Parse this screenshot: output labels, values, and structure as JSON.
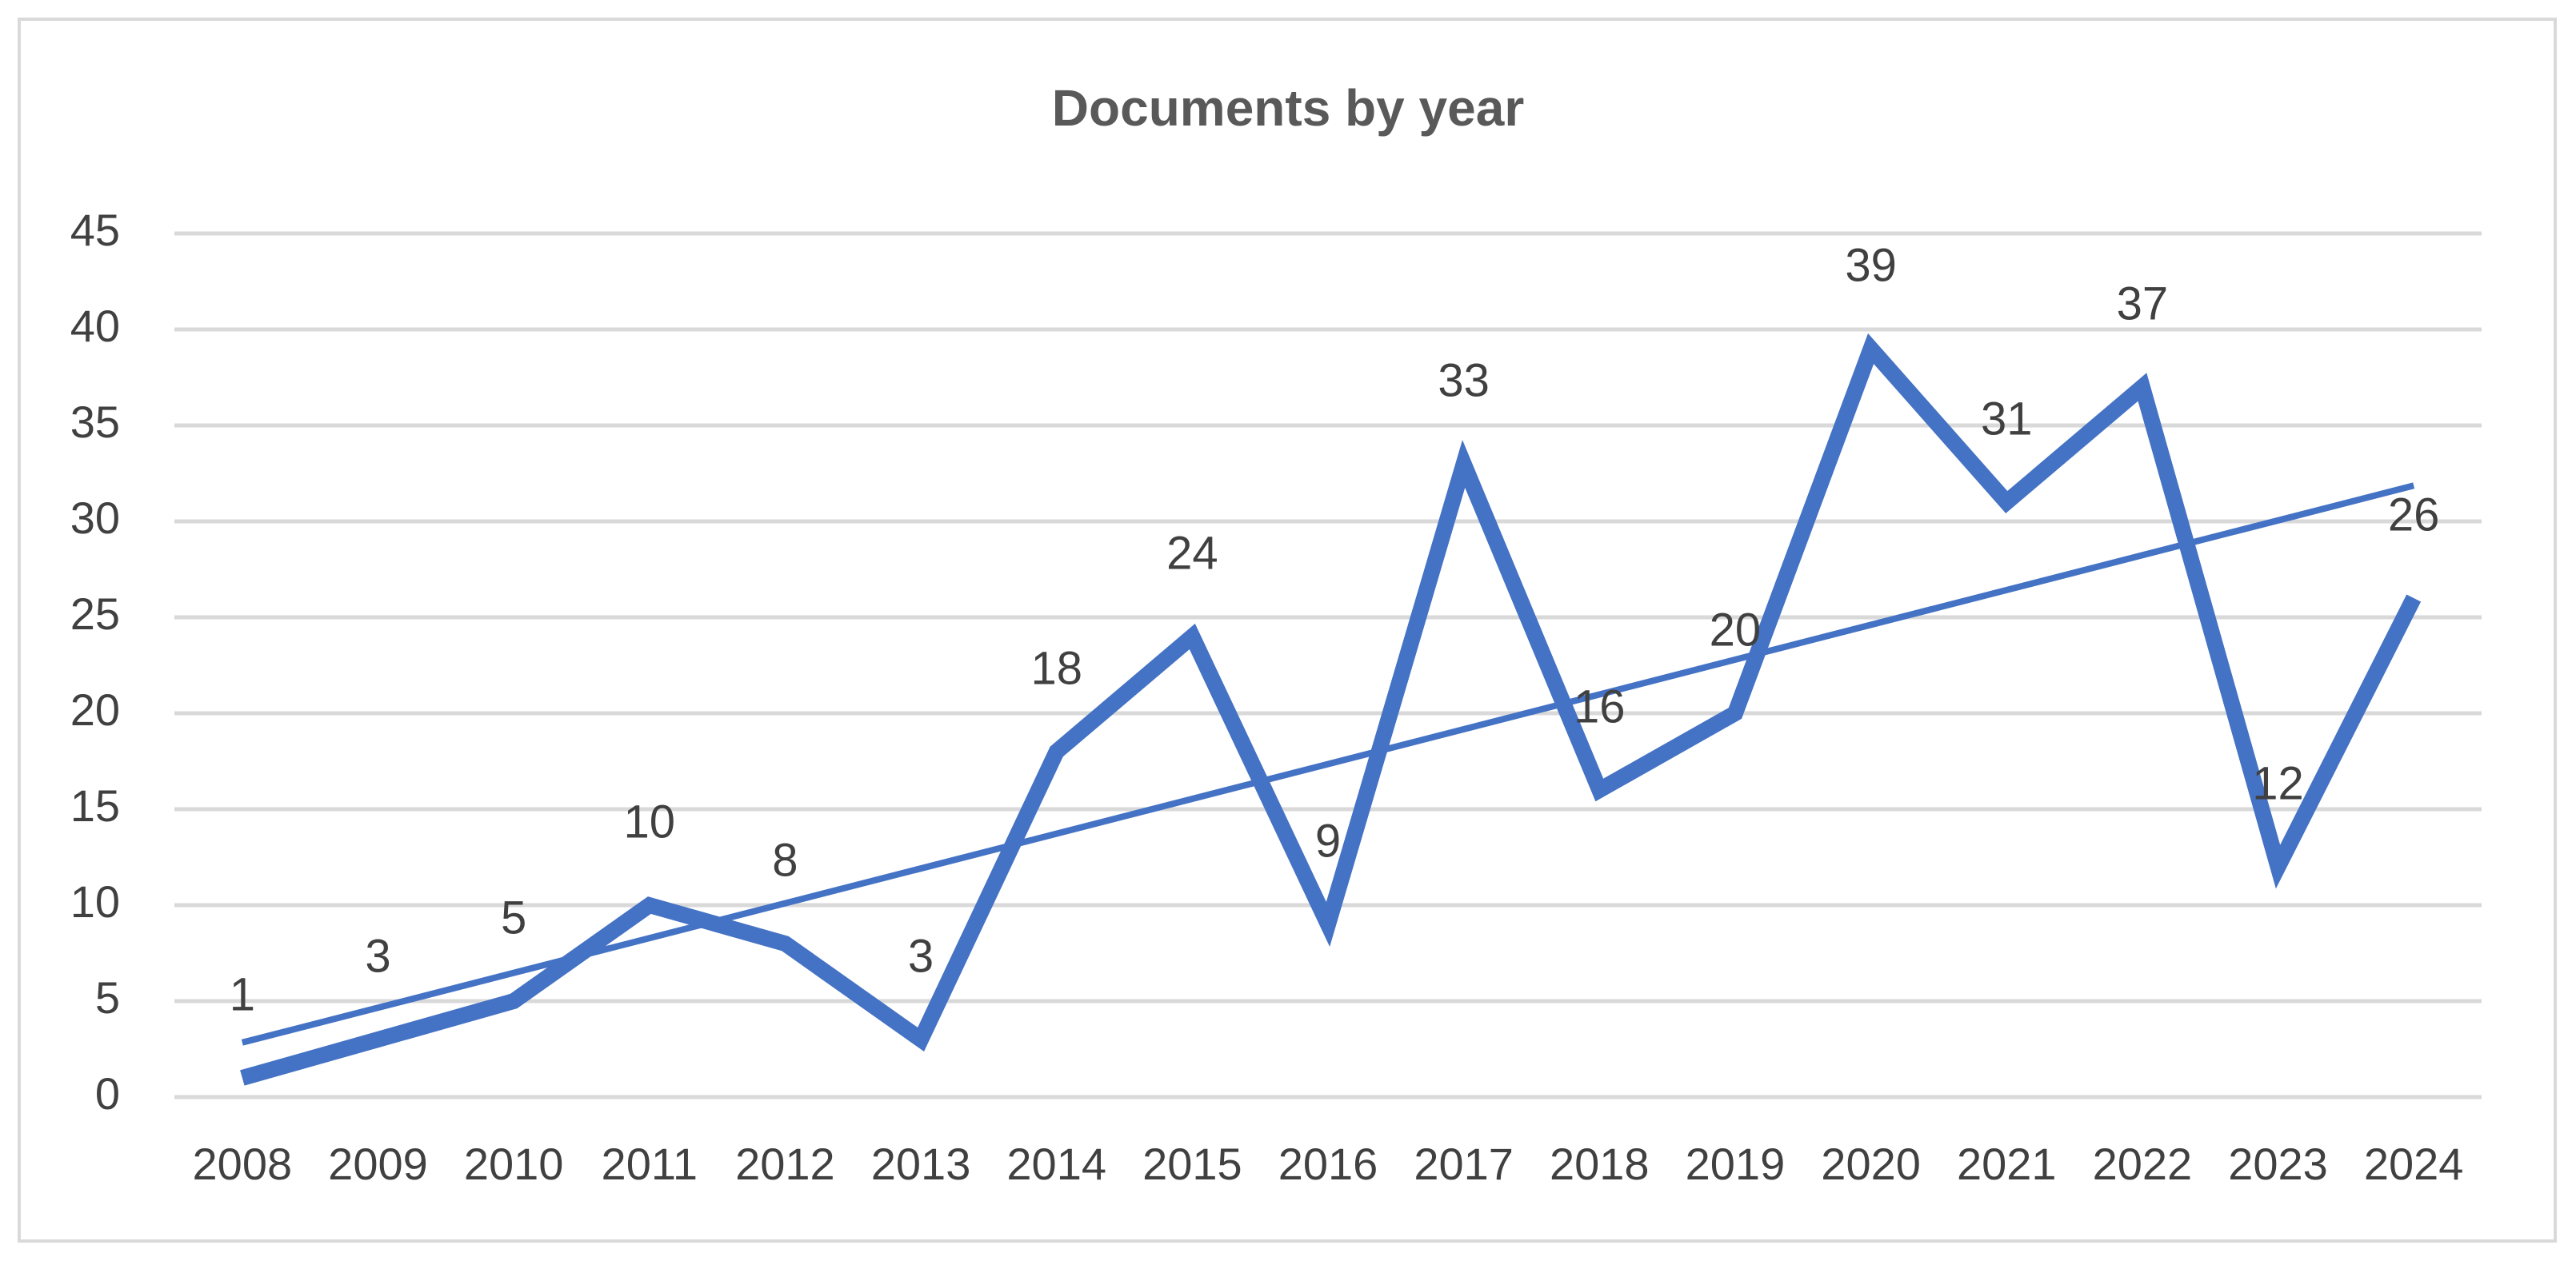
{
  "chart_data": {
    "type": "line",
    "title": "Documents by year",
    "categories": [
      "2008",
      "2009",
      "2010",
      "2011",
      "2012",
      "2013",
      "2014",
      "2015",
      "2016",
      "2017",
      "2018",
      "2019",
      "2020",
      "2021",
      "2022",
      "2023",
      "2024"
    ],
    "values": [
      1,
      3,
      5,
      10,
      8,
      3,
      18,
      24,
      9,
      33,
      16,
      20,
      39,
      31,
      37,
      12,
      26
    ],
    "color": "#4472c4",
    "ylim": [
      0,
      45
    ],
    "yticks": [
      0,
      5,
      10,
      15,
      20,
      25,
      30,
      35,
      40,
      45
    ],
    "grid": true,
    "data_labels": true,
    "trendline": "linear"
  }
}
